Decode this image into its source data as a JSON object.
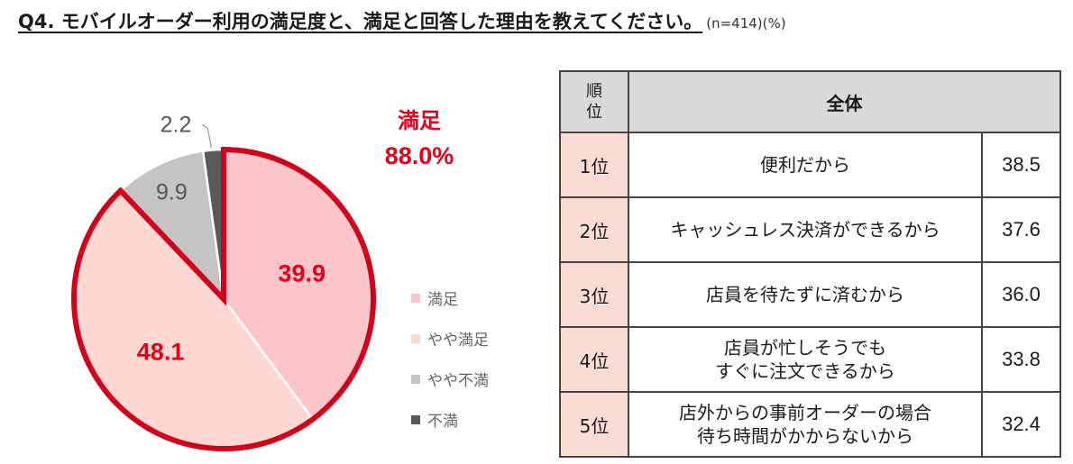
{
  "title": "Q4. モバイルオーダー利用の満足度と、満足と回答した理由を教えてください。",
  "title_note": "(n=414)(%)",
  "chart_data": [
    {
      "type": "pie",
      "categories": [
        "満足",
        "やや満足",
        "やや不満",
        "不満"
      ],
      "values": [
        39.9,
        48.1,
        9.9,
        2.2
      ],
      "colors": [
        "#fcc5c9",
        "#fdd8d3",
        "#c4c4c4",
        "#595959"
      ],
      "highlight_color": "#d0021b",
      "callout": {
        "label": "満足",
        "value": "88.0%"
      },
      "legend_position": "right"
    },
    {
      "type": "table",
      "header": {
        "rank": "順\n位",
        "group": "全体"
      },
      "rows": [
        {
          "rank": "1位",
          "reason": "便利だから",
          "value": 38.5
        },
        {
          "rank": "2位",
          "reason": "キャッシュレス決済ができるから",
          "value": 37.6
        },
        {
          "rank": "3位",
          "reason": "店員を待たずに済むから",
          "value": 36.0
        },
        {
          "rank": "4位",
          "reason": "店員が忙しそうでも\nすぐに注文できるから",
          "value": 33.8
        },
        {
          "rank": "5位",
          "reason": "店外からの事前オーダーの場合\n待ち時間がかからないから",
          "value": 32.4
        }
      ]
    }
  ]
}
